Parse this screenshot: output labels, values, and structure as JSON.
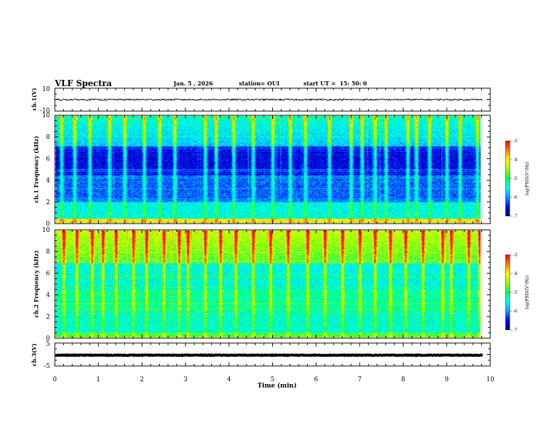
{
  "header": {
    "title": "VLF Spectra",
    "date": "Jan. 5 , 2026",
    "station": "station= OUI",
    "start": "start UT =  15: 50: 0"
  },
  "panels": {
    "ch1": {
      "ylabel": "ch.1(V)",
      "ticks": [
        "10",
        "-10"
      ]
    },
    "ch1spec": {
      "ylabel": "ch.1 Frequency (kHz)",
      "ticks": [
        "0",
        "2",
        "4",
        "6",
        "8",
        "10"
      ]
    },
    "ch2spec": {
      "ylabel": "ch.2 Frequency (kHz)",
      "ticks": [
        "0",
        "2",
        "4",
        "6",
        "8",
        "10"
      ]
    },
    "ch3": {
      "ylabel": "ch.3(V)",
      "ticks": [
        "5",
        "-5"
      ]
    }
  },
  "colorbar": {
    "label": "log(PSD)(V²/Hz)",
    "ticks": [
      "-3",
      "-4",
      "-5",
      "-6",
      "-7"
    ],
    "colors": [
      "#000080",
      "#0000ff",
      "#00a0ff",
      "#00ffff",
      "#00ff60",
      "#a0ff00",
      "#ffff00",
      "#ff8000",
      "#ff0000",
      "#ffffff"
    ]
  },
  "chart_data": {
    "type": "heatmap",
    "xlabel": "Time (min)",
    "x_ticks": [
      "0",
      "1",
      "2",
      "3",
      "4",
      "5",
      "6",
      "7",
      "8",
      "9",
      "10"
    ],
    "xlim": [
      0,
      10
    ],
    "series": [
      {
        "name": "ch.1",
        "kind": "waveform",
        "ylim": [
          -10,
          10
        ],
        "level": 0,
        "amplitude": 1.2
      },
      {
        "name": "ch.1",
        "kind": "spectrogram",
        "ylim_khz": [
          0,
          10
        ],
        "clim_log_psd": [
          -7,
          -3
        ],
        "spikes_min": [
          0.15,
          0.45,
          0.8,
          1.25,
          1.6,
          2.05,
          2.4,
          2.75,
          3.45,
          3.7,
          4.1,
          4.55,
          5.0,
          5.4,
          5.75,
          6.3,
          6.8,
          7.05,
          7.35,
          7.6,
          8.1,
          8.3,
          8.6,
          9.0,
          9.3,
          9.7
        ]
      },
      {
        "name": "ch.2",
        "kind": "spectrogram",
        "ylim_khz": [
          0,
          10
        ],
        "clim_log_psd": [
          -7,
          -3
        ],
        "spikes_min": [
          0.2,
          0.5,
          0.85,
          1.1,
          1.4,
          1.8,
          2.1,
          2.5,
          2.85,
          3.05,
          3.45,
          3.8,
          4.15,
          4.55,
          4.95,
          5.35,
          5.8,
          6.2,
          6.6,
          7.0,
          7.35,
          7.7,
          8.05,
          8.45,
          8.9,
          9.1,
          9.5,
          9.75
        ]
      },
      {
        "name": "ch.3",
        "kind": "waveform",
        "ylim": [
          -5,
          5
        ],
        "level": -0.3,
        "amplitude": 0.25
      }
    ],
    "data_end_min": 9.83
  }
}
